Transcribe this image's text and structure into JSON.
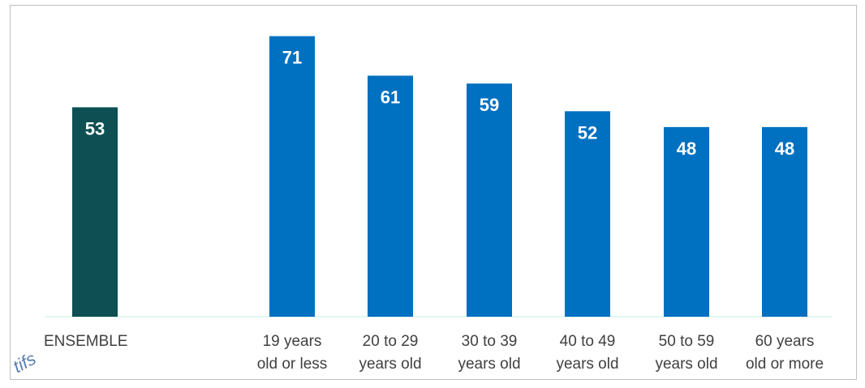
{
  "chart_data": {
    "type": "bar",
    "categories": [
      "ENSEMBLE",
      "19 years old or less",
      "20 to 29 years old",
      "30 to 39 years old",
      "40 to 49 years old",
      "50 to 59 years old",
      "60 years old or more"
    ],
    "category_lines": [
      [
        "ENSEMBLE"
      ],
      [
        "19 years",
        "old or less"
      ],
      [
        "20 to 29",
        "years old"
      ],
      [
        "30 to 39",
        "years old"
      ],
      [
        "40 to 49",
        "years old"
      ],
      [
        "50 to 59",
        "years old"
      ],
      [
        "60 years",
        "old or more"
      ]
    ],
    "values": [
      53,
      71,
      61,
      59,
      52,
      48,
      48
    ],
    "bar_colors": [
      "#0d4f52",
      "#0070c0",
      "#0070c0",
      "#0070c0",
      "#0070c0",
      "#0070c0",
      "#0070c0"
    ],
    "data_labels": true,
    "ylim": [
      0,
      74
    ],
    "grid": false,
    "legend": "none",
    "title": "",
    "xlabel": "",
    "ylabel": ""
  },
  "watermark": {
    "text": "tifs"
  }
}
